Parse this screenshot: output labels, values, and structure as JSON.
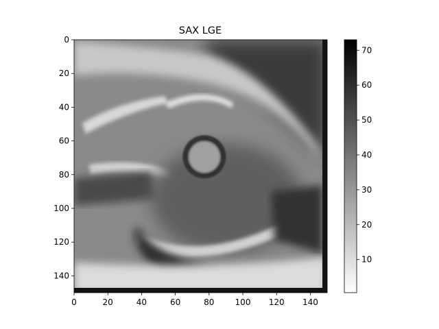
{
  "chart_data": {
    "type": "heatmap",
    "title": "SAX LGE",
    "xlabel": "",
    "ylabel": "",
    "x_ticks": [
      0,
      20,
      40,
      60,
      80,
      100,
      120,
      140
    ],
    "y_ticks": [
      0,
      20,
      40,
      60,
      80,
      100,
      120,
      140
    ],
    "xlim": [
      0,
      150
    ],
    "ylim": [
      150,
      0
    ],
    "colormap": "gray_r",
    "colorbar": {
      "range": [
        0.5,
        73
      ],
      "ticks": [
        10,
        20,
        30,
        40,
        50,
        60,
        70
      ]
    },
    "grid": false,
    "colors": {
      "low": "#ffffff",
      "high": "#000000"
    }
  }
}
